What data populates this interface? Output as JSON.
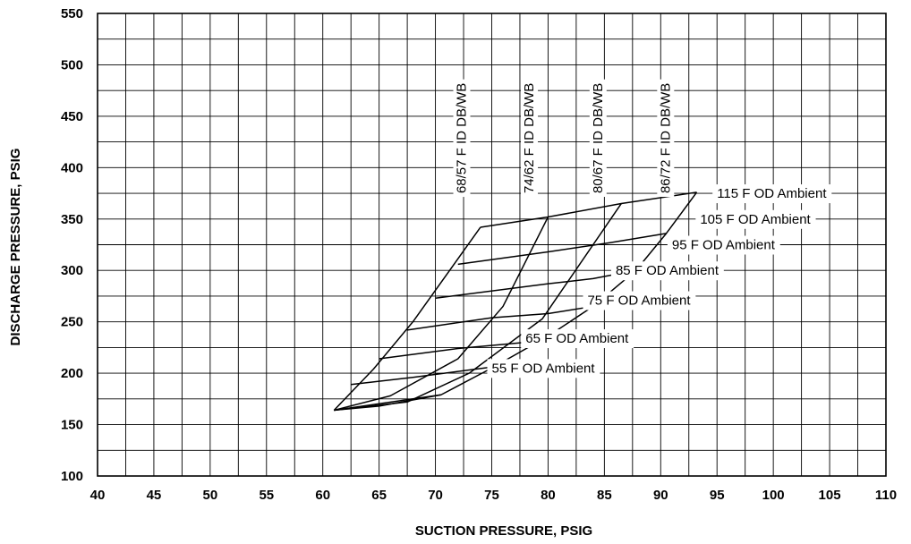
{
  "chart_data": {
    "type": "line",
    "title": "",
    "xlabel": "SUCTION PRESSURE, PSIG",
    "ylabel": "DISCHARGE PRESSURE, PSIG",
    "xlim": [
      40,
      110
    ],
    "ylim": [
      100,
      550
    ],
    "x_ticks": [
      "40",
      "45",
      "50",
      "55",
      "60",
      "65",
      "70",
      "75",
      "80",
      "85",
      "90",
      "95",
      "100",
      "105",
      "110"
    ],
    "y_ticks": [
      "550",
      "500",
      "450",
      "400",
      "350",
      "300",
      "250",
      "200",
      "150",
      "100"
    ],
    "grid": true,
    "ambient_series": [
      {
        "name": "115 F OD Ambient",
        "points": [
          [
            74,
            342
          ],
          [
            80,
            352
          ],
          [
            86.5,
            365
          ],
          [
            93.2,
            376
          ]
        ]
      },
      {
        "name": "105 F OD Ambient",
        "points": [
          [
            72,
            306
          ],
          [
            80,
            318
          ],
          [
            85.5,
            327
          ],
          [
            90.5,
            336
          ]
        ]
      },
      {
        "name": "95 F OD Ambient",
        "points": [
          [
            70,
            273
          ],
          [
            80,
            287
          ],
          [
            84,
            292
          ],
          [
            87.8,
            300
          ]
        ]
      },
      {
        "name": "85 F OD Ambient",
        "points": [
          [
            67.5,
            242
          ],
          [
            75,
            254
          ],
          [
            80,
            258
          ],
          [
            84,
            265
          ]
        ]
      },
      {
        "name": "75 F OD Ambient",
        "points": [
          [
            65,
            214
          ],
          [
            72,
            224
          ],
          [
            78,
            230
          ],
          [
            81,
            236
          ]
        ]
      },
      {
        "name": "65 F OD Ambient",
        "points": [
          [
            62.5,
            189
          ],
          [
            68,
            196
          ],
          [
            75,
            206
          ]
        ]
      },
      {
        "name": "55 F OD Ambient",
        "points": [
          [
            61,
            164
          ],
          [
            65,
            168
          ],
          [
            70.5,
            179
          ]
        ]
      }
    ],
    "indoor_series": [
      {
        "name": "68/57 F ID DB/WB",
        "points": [
          [
            61,
            164
          ],
          [
            64.5,
            204
          ],
          [
            68,
            250
          ],
          [
            74,
            342
          ]
        ]
      },
      {
        "name": "74/62 F ID DB/WB",
        "points": [
          [
            61,
            164
          ],
          [
            66,
            178
          ],
          [
            72,
            214
          ],
          [
            76,
            265
          ],
          [
            80,
            352
          ]
        ]
      },
      {
        "name": "80/67 F ID DB/WB",
        "points": [
          [
            61,
            164
          ],
          [
            67.5,
            172
          ],
          [
            73,
            200
          ],
          [
            79.5,
            253
          ],
          [
            86.5,
            365
          ]
        ]
      },
      {
        "name": "86/72 F ID DB/WB",
        "points": [
          [
            61,
            164
          ],
          [
            70.5,
            179
          ],
          [
            75,
            205
          ],
          [
            80,
            236
          ],
          [
            84,
            265
          ],
          [
            87.8,
            300
          ],
          [
            90.5,
            336
          ],
          [
            93.2,
            376
          ]
        ]
      }
    ]
  }
}
